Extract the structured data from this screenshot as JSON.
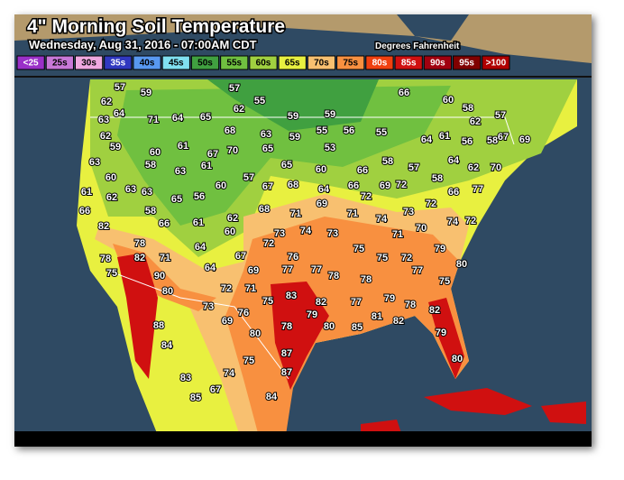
{
  "title": "4\" Morning Soil Temperature",
  "subtitle": "Wednesday, Aug 31, 2016 - 07:00AM CDT",
  "units": "Degrees Fahrenheit",
  "legend": [
    {
      "label": "<25",
      "color": "#9a30c8"
    },
    {
      "label": "25s",
      "color": "#c878d8"
    },
    {
      "label": "30s",
      "color": "#f0a8e0"
    },
    {
      "label": "35s",
      "color": "#3038c0"
    },
    {
      "label": "40s",
      "color": "#5898f0"
    },
    {
      "label": "45s",
      "color": "#80e0f0"
    },
    {
      "label": "50s",
      "color": "#40a040"
    },
    {
      "label": "55s",
      "color": "#70c040"
    },
    {
      "label": "60s",
      "color": "#a0d040"
    },
    {
      "label": "65s",
      "color": "#e8f040"
    },
    {
      "label": "70s",
      "color": "#f8c070"
    },
    {
      "label": "75s",
      "color": "#f89040"
    },
    {
      "label": "80s",
      "color": "#f04010"
    },
    {
      "label": "85s",
      "color": "#d01010"
    },
    {
      "label": "90s",
      "color": "#a00010"
    },
    {
      "label": "95s",
      "color": "#800000"
    },
    {
      "label": ">100",
      "color": "#b00000"
    }
  ],
  "stations": [
    57,
    59,
    57,
    55,
    62,
    64,
    71,
    64,
    65,
    62,
    59,
    59,
    66,
    60,
    58,
    62,
    57,
    63,
    62,
    59,
    60,
    61,
    67,
    70,
    68,
    63,
    59,
    55,
    56,
    55,
    64,
    61,
    56,
    58,
    67,
    69,
    63,
    58,
    63,
    61,
    65,
    65,
    53,
    60,
    66,
    58,
    57,
    58,
    64,
    62,
    70,
    60,
    63,
    63,
    61,
    62,
    65,
    56,
    60,
    57,
    67,
    68,
    64,
    66,
    72,
    69,
    72,
    72,
    66,
    77,
    66,
    58,
    66,
    61,
    62,
    68,
    71,
    69,
    71,
    74,
    73,
    74,
    72,
    82,
    60,
    64,
    72,
    73,
    74,
    73,
    75,
    71,
    70,
    79,
    78,
    78,
    82,
    71,
    64,
    67,
    69,
    76,
    77,
    77,
    78,
    75,
    72,
    80,
    75,
    90,
    78,
    77,
    75,
    80,
    72,
    71,
    75,
    83,
    82,
    77,
    79,
    78,
    82,
    73,
    69,
    76,
    79,
    80,
    85,
    81,
    82,
    78,
    79,
    80,
    88,
    84,
    87,
    80,
    75,
    87,
    74,
    83,
    67,
    85,
    84
  ]
}
